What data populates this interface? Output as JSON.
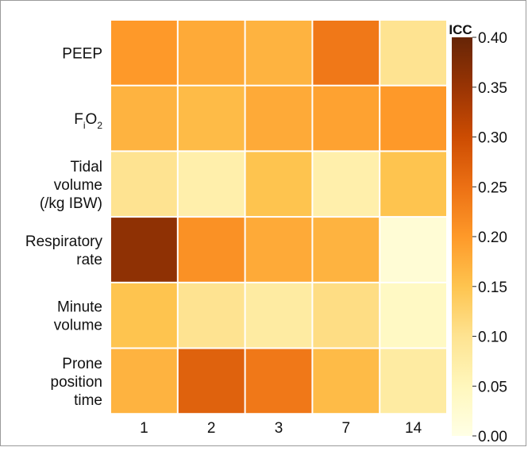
{
  "chart_data": {
    "type": "heatmap",
    "title": "",
    "xlabel": "",
    "ylabel": "",
    "x_categories": [
      "1",
      "2",
      "3",
      "7",
      "14"
    ],
    "y_categories": [
      {
        "lines": [
          "PEEP"
        ],
        "sub": false
      },
      {
        "lines": [
          "FiO2"
        ],
        "sub": true,
        "base1": "F",
        "sub1": "i",
        "base2": "O",
        "sub2": "2"
      },
      {
        "lines": [
          "Tidal",
          "volume",
          "(/kg IBW)"
        ],
        "sub": false
      },
      {
        "lines": [
          "Respiratory",
          "rate"
        ],
        "sub": false
      },
      {
        "lines": [
          "Minute",
          "volume"
        ],
        "sub": false
      },
      {
        "lines": [
          "Prone",
          "position",
          "time"
        ],
        "sub": false
      }
    ],
    "values": [
      [
        0.2,
        0.18,
        0.17,
        0.24,
        0.1
      ],
      [
        0.17,
        0.16,
        0.18,
        0.19,
        0.2
      ],
      [
        0.1,
        0.07,
        0.15,
        0.07,
        0.15
      ],
      [
        0.36,
        0.21,
        0.18,
        0.17,
        0.02
      ],
      [
        0.15,
        0.1,
        0.08,
        0.11,
        0.04
      ],
      [
        0.17,
        0.27,
        0.24,
        0.16,
        0.08
      ]
    ],
    "colorbar": {
      "label": "ICC",
      "vmin": 0.0,
      "vmax": 0.4,
      "ticks": [
        "0.00",
        "0.05",
        "0.10",
        "0.15",
        "0.20",
        "0.25",
        "0.30",
        "0.35",
        "0.40"
      ],
      "colormap": "YlOrBr",
      "stops": [
        "#ffffe5",
        "#fff7bc",
        "#fee391",
        "#fec44f",
        "#fe9929",
        "#ec7014",
        "#cc4c02",
        "#993404",
        "#662506"
      ]
    }
  }
}
